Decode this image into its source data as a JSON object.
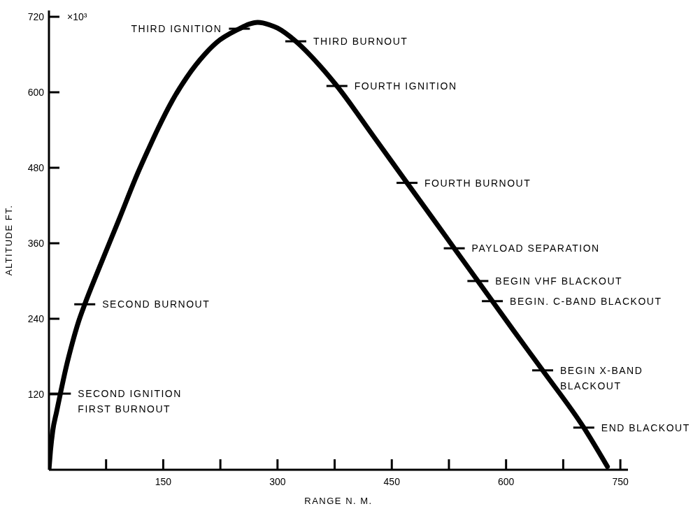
{
  "chart_data": {
    "type": "line",
    "xlabel": "RANGE N. M.",
    "ylabel": "ALTITUDE FT.",
    "x": [
      0,
      2,
      5,
      10,
      15,
      22,
      31,
      39,
      47,
      66,
      92,
      116,
      130,
      143,
      162,
      181,
      205,
      220,
      250,
      262,
      274,
      290,
      300,
      324,
      355,
      378,
      426,
      470,
      510,
      532,
      563,
      582,
      610,
      648,
      702,
      733
    ],
    "series": [
      {
        "color": "#000000",
        "values": [
          0,
          30,
          62,
          92,
          121,
          160,
          203,
          236,
          263,
          321,
          398,
          470,
          508,
          542,
          587,
          624,
          661,
          679,
          701,
          708,
          711,
          707,
          702,
          681,
          643,
          610,
          530,
          456,
          389,
          352,
          300,
          268,
          221,
          158,
          67,
          5
        ]
      }
    ],
    "xlim": [
      0,
      760
    ],
    "xticks": [
      {
        "value": 75,
        "label": null
      },
      150,
      {
        "value": 225,
        "label": null
      },
      300,
      {
        "value": 375,
        "label": null
      },
      450,
      {
        "value": 525,
        "label": null
      },
      600,
      {
        "value": 675,
        "label": null
      },
      750
    ],
    "ylim": [
      0,
      730
    ],
    "yticks": [
      120,
      240,
      360,
      480,
      600,
      720
    ],
    "marker": "none",
    "line_style": "solid",
    "grid": false,
    "annotations": [
      "×10³",
      {
        "text": "SECOND IGNITION\nFIRST BURNOUT",
        "x": 15,
        "y": 121
      },
      {
        "text": "SECOND BURNOUT",
        "x": 47,
        "y": 263
      },
      {
        "text": "THIRD IGNITION",
        "x": 250,
        "y": 701
      },
      {
        "text": "THIRD BURNOUT",
        "x": 324,
        "y": 681
      },
      {
        "text": "FOURTH IGNITION",
        "x": 378,
        "y": 610
      },
      {
        "text": "FOURTH BURNOUT",
        "x": 470,
        "y": 456
      },
      {
        "text": "PAYLOAD SEPARATION",
        "x": 532,
        "y": 352
      },
      {
        "text": "BEGIN VHF BLACKOUT",
        "x": 563,
        "y": 300
      },
      {
        "text": "BEGIN. C-BAND BLACKOUT",
        "x": 582,
        "y": 268
      },
      {
        "text": "BEGIN X-BAND\nBLACKOUT",
        "x": 648,
        "y": 158
      },
      {
        "text": "END BLACKOUT",
        "x": 702,
        "y": 67
      }
    ]
  }
}
